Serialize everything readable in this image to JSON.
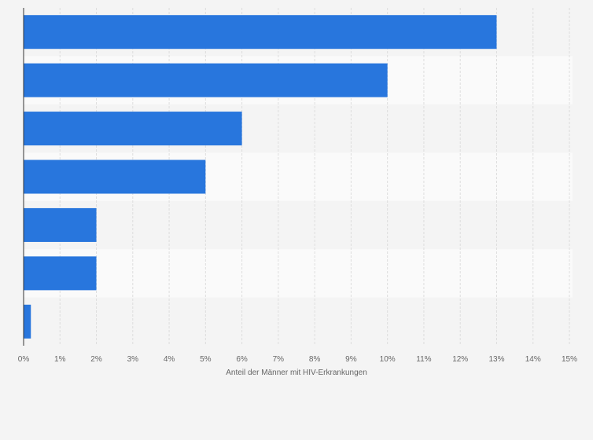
{
  "chart_data": {
    "type": "bar",
    "orientation": "horizontal",
    "categories": [
      "",
      "",
      "",
      "",
      "",
      "",
      ""
    ],
    "values": [
      13,
      10,
      6,
      5,
      2,
      2,
      0.2
    ],
    "xlabel": "Anteil der Männer mit HIV-Erkrankungen",
    "ylabel": "",
    "xlim": [
      0,
      15
    ],
    "x_ticks": [
      0,
      1,
      2,
      3,
      4,
      5,
      6,
      7,
      8,
      9,
      10,
      11,
      12,
      13,
      14,
      15
    ],
    "x_tick_labels": [
      "0%",
      "1%",
      "2%",
      "3%",
      "4%",
      "5%",
      "6%",
      "7%",
      "8%",
      "9%",
      "10%",
      "11%",
      "12%",
      "13%",
      "14%",
      "15%"
    ],
    "grid": "vertical dashed",
    "colors": {
      "bar": "#2876dd",
      "background": "#f4f4f4",
      "band_light": "#fafafa",
      "band_dark": "#f4f4f4",
      "grid": "#dddddd",
      "axis": "#333333",
      "text": "#666666"
    }
  }
}
